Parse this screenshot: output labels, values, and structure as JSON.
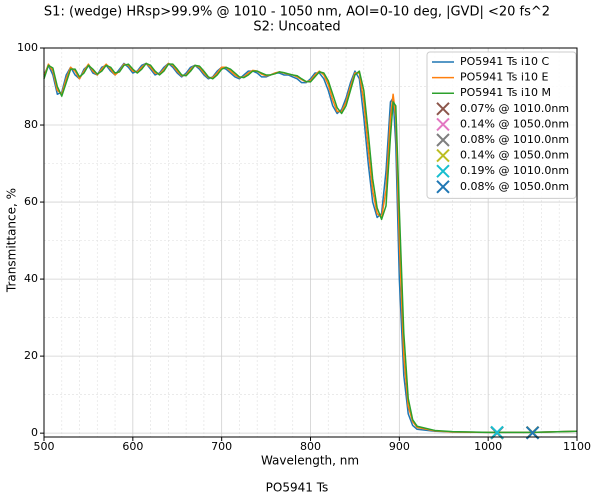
{
  "chart_data": {
    "type": "line",
    "title": "S1: (wedge) HRsp>99.9% @ 1010 - 1050 nm, AOI=0-10 deg, |GVD| <20 fs^2",
    "subtitle": "S2: Uncoated",
    "xlabel": "Wavelength, nm",
    "ylabel": "Transmittance, %",
    "caption": "PO5941 Ts",
    "xlim": [
      500,
      1100
    ],
    "xticks": [
      500,
      600,
      700,
      800,
      900,
      1000,
      1100
    ],
    "ylim": [
      -1,
      100
    ],
    "yticks": [
      0,
      20,
      40,
      60,
      80,
      100
    ],
    "xminorticks": [
      520,
      540,
      560,
      580,
      620,
      640,
      660,
      680,
      720,
      740,
      760,
      780,
      820,
      840,
      860,
      880,
      920,
      940,
      960,
      980,
      1020,
      1040,
      1060,
      1080
    ],
    "yminorticks": [
      10,
      30,
      50,
      70,
      90
    ],
    "grid": true,
    "legend": "upper right",
    "x": [
      500,
      505,
      510,
      515,
      520,
      525,
      530,
      535,
      540,
      545,
      550,
      555,
      560,
      565,
      570,
      575,
      580,
      585,
      590,
      595,
      600,
      605,
      610,
      615,
      620,
      625,
      630,
      635,
      640,
      645,
      650,
      655,
      660,
      665,
      670,
      675,
      680,
      685,
      690,
      695,
      700,
      705,
      710,
      715,
      720,
      725,
      730,
      735,
      740,
      745,
      750,
      755,
      760,
      765,
      770,
      775,
      780,
      785,
      790,
      795,
      800,
      805,
      810,
      815,
      820,
      825,
      830,
      835,
      840,
      845,
      850,
      855,
      860,
      865,
      870,
      875,
      880,
      885,
      890,
      893,
      896,
      900,
      905,
      910,
      915,
      920,
      940,
      960,
      1000,
      1050,
      1100
    ],
    "series": [
      {
        "name": "PO5941 Ts i10 C",
        "color": "#1f77b4",
        "values": [
          93,
          95.5,
          93,
          88,
          88.5,
          93,
          95,
          93,
          92,
          94.5,
          95.5,
          93.5,
          93,
          95,
          95.5,
          94,
          93,
          94.5,
          96,
          95,
          93.5,
          94,
          95.5,
          96,
          94.5,
          93,
          93.5,
          95,
          96,
          95,
          93.5,
          92.5,
          93.5,
          95,
          95.5,
          94.5,
          93,
          92,
          92.5,
          94,
          95,
          94.5,
          93.5,
          92.5,
          92,
          93,
          94,
          94,
          93.5,
          92.5,
          92.5,
          93,
          93.5,
          93.5,
          93,
          93,
          92.5,
          92,
          91,
          91,
          92,
          93.5,
          93.5,
          92,
          89,
          85,
          83,
          84,
          87,
          91,
          94,
          92,
          82,
          70,
          60,
          56,
          57,
          68,
          86,
          87,
          75,
          40,
          15,
          5,
          2,
          1,
          0.5,
          0.3,
          0.2,
          0.2,
          0.5
        ]
      },
      {
        "name": "PO5941 Ts i10 E",
        "color": "#ff7f0e",
        "values": [
          92.5,
          95.8,
          94,
          89,
          88,
          92,
          95,
          94,
          92,
          94,
          95.8,
          94,
          93,
          94.5,
          95.8,
          94.5,
          93,
          94,
          95.8,
          95.5,
          94,
          93.8,
          95,
          96,
          95,
          93.5,
          93.2,
          94.5,
          96,
          95.5,
          94,
          92.8,
          93,
          94.5,
          95.5,
          95,
          93.5,
          92.3,
          92.3,
          93.5,
          95,
          95,
          94,
          93,
          92.3,
          92.5,
          93.5,
          94.2,
          94,
          93.2,
          92.8,
          93,
          93.5,
          93.8,
          93.5,
          93.2,
          93,
          92.5,
          91.8,
          91.2,
          91.5,
          93,
          94,
          93,
          90.5,
          86.5,
          83.5,
          83.5,
          86,
          90,
          93.5,
          93.5,
          86,
          74,
          63,
          57,
          56,
          63,
          82,
          88,
          82,
          50,
          20,
          7,
          3,
          1.5,
          0.6,
          0.3,
          0.2,
          0.2,
          0.5
        ]
      },
      {
        "name": "PO5941 Ts i10 M",
        "color": "#2ca02c",
        "values": [
          92,
          95.5,
          94.8,
          90,
          87.5,
          91,
          94.5,
          94.5,
          92.5,
          93.5,
          95.5,
          94.5,
          93.2,
          94,
          95.5,
          95,
          93.5,
          93.8,
          95.5,
          95.8,
          94.5,
          93.5,
          94.5,
          96,
          95.5,
          94,
          93,
          94,
          95.8,
          95.8,
          94.5,
          93,
          92.8,
          94,
          95.5,
          95.3,
          94,
          92.5,
          92,
          93,
          94.5,
          95,
          94.5,
          93.5,
          92.5,
          92.3,
          93,
          94,
          94,
          93.5,
          93,
          93,
          93.3,
          93.8,
          93.6,
          93.3,
          93,
          92.8,
          92,
          91.3,
          91.2,
          92.5,
          93.8,
          93.5,
          91.5,
          88,
          84.5,
          83,
          85,
          89,
          93,
          94,
          89,
          78,
          66,
          58.5,
          55.5,
          59,
          77,
          86,
          85,
          58,
          26,
          9,
          3.5,
          1.8,
          0.7,
          0.4,
          0.2,
          0.2,
          0.5
        ]
      }
    ],
    "markers": [
      {
        "name": "0.07% @ 1010.0nm",
        "color": "#8c564b",
        "x": 1010,
        "y": 0.07
      },
      {
        "name": "0.14% @ 1050.0nm",
        "color": "#e377c2",
        "x": 1050,
        "y": 0.14
      },
      {
        "name": "0.08% @ 1010.0nm",
        "color": "#7f7f7f",
        "x": 1010,
        "y": 0.08
      },
      {
        "name": "0.14% @ 1050.0nm",
        "color": "#bcbd22",
        "x": 1050,
        "y": 0.14
      },
      {
        "name": "0.19% @ 1010.0nm",
        "color": "#17becf",
        "x": 1010,
        "y": 0.19
      },
      {
        "name": "0.08% @ 1050.0nm",
        "color": "#1f77b4",
        "x": 1050,
        "y": 0.08
      }
    ]
  }
}
